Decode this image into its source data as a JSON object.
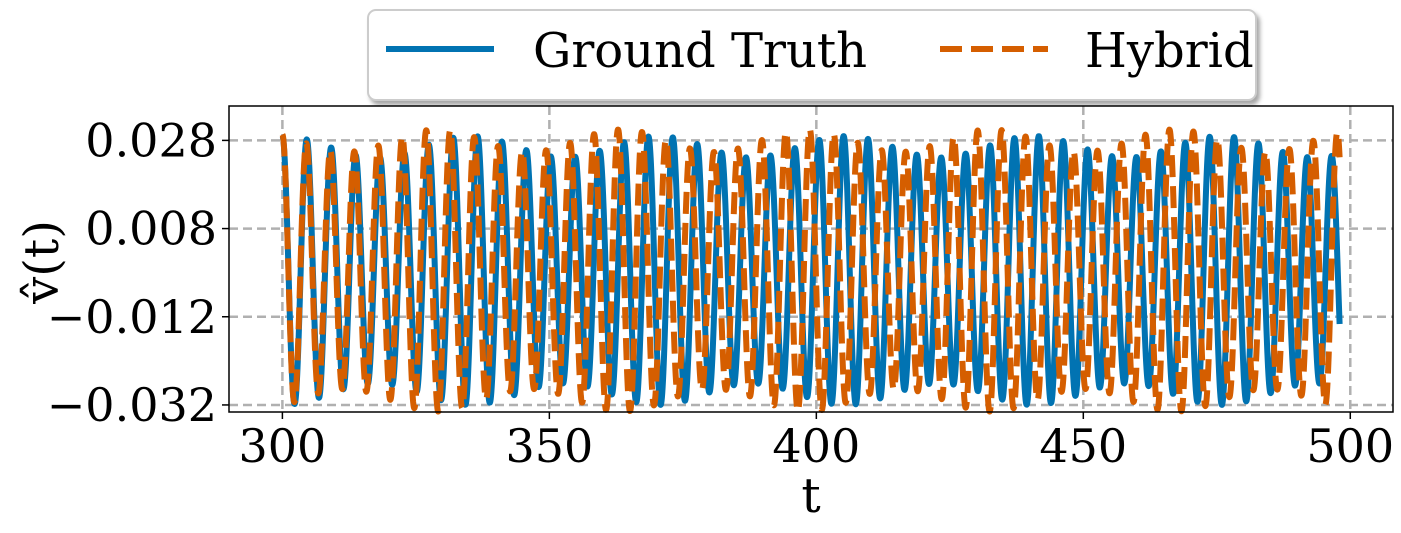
{
  "chart_data": {
    "type": "line",
    "xlabel": "t",
    "ylabel": "v̂(t)",
    "xlim": [
      290,
      508
    ],
    "ylim": [
      -0.0336,
      0.0358
    ],
    "xticks": [
      300,
      350,
      400,
      450,
      500
    ],
    "xtick_labels": [
      "300",
      "350",
      "400",
      "450",
      "500"
    ],
    "yticks": [
      0.028,
      0.008,
      -0.012,
      -0.032
    ],
    "ytick_labels": [
      "0.028",
      "0.008",
      "−0.012",
      "−0.032"
    ],
    "grid": true,
    "legend_position": "top-center, above plot",
    "x_start": 300,
    "x_end": 498,
    "series": [
      {
        "name": "Ground Truth",
        "color": "#0173b2",
        "style": "solid",
        "period": 4.57,
        "amplitude": 0.0305,
        "offset": -0.0015
      },
      {
        "name": "Hybrid",
        "color": "#d55e00",
        "style": "dashed",
        "period": 4.49,
        "amplitude": 0.032,
        "offset": -0.0015
      }
    ]
  }
}
